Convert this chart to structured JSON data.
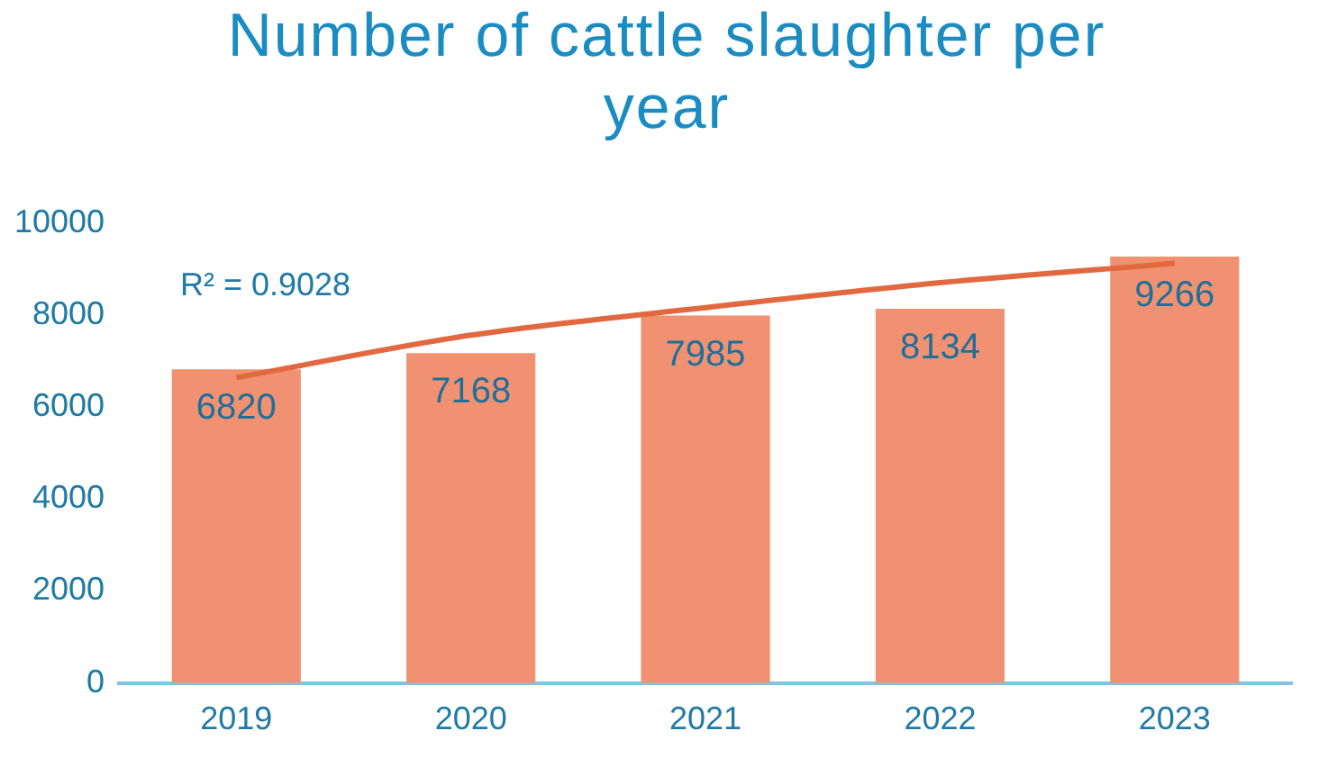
{
  "chart_data": {
    "type": "bar",
    "title": "Number of cattle slaughter per year",
    "categories": [
      "2019",
      "2020",
      "2021",
      "2022",
      "2023"
    ],
    "series": [
      {
        "color": "#f09272",
        "values": [
          6820,
          7168,
          7985,
          8134,
          9266
        ],
        "value_labels": [
          "6820",
          "7168",
          "7985",
          "8134",
          "9266"
        ]
      },
      {
        "type": "line",
        "color": "#e2693f",
        "values": [
          6640,
          7560,
          8160,
          8700,
          9120
        ]
      }
    ],
    "ylim": [
      0,
      10000
    ],
    "yticks": [
      0,
      2000,
      4000,
      6000,
      8000,
      10000
    ],
    "grid": false,
    "legend": false,
    "marker": "none",
    "annotations": [
      "R² = 0.9028"
    ]
  }
}
